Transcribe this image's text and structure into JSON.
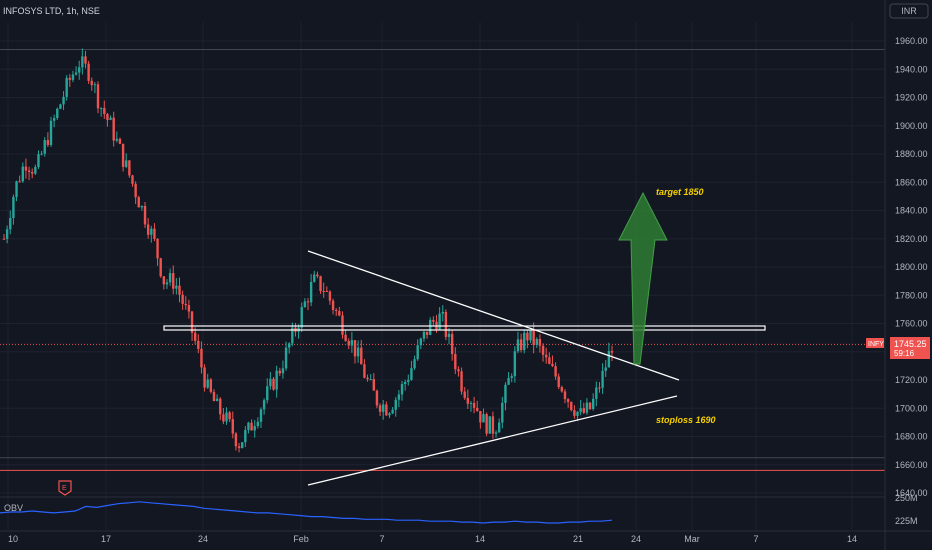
{
  "header": {
    "title": "INFOSYS LTD, 1h, NSE",
    "currency": "INR"
  },
  "indicator": {
    "name": "OBV",
    "ticks": [
      "250M",
      "225M"
    ]
  },
  "price_badge": {
    "symbol": "INFY",
    "price": "1745.25",
    "countdown": "59:16"
  },
  "colors": {
    "up": "#26a69a",
    "down": "#ef5350",
    "background": "#131722",
    "grid": "#1e2230",
    "obv": "#2962ff",
    "arrow": "#2e7d32",
    "annotation": "#f5d000"
  },
  "chart_data": {
    "type": "candlestick",
    "title": "INFOSYS LTD, 1h, NSE",
    "y_ticks": [
      1960,
      1940,
      1920,
      1900,
      1880,
      1860,
      1840,
      1820,
      1800,
      1780,
      1760,
      1740,
      1720,
      1700,
      1680,
      1660,
      1640
    ],
    "ylim": [
      1632,
      1972
    ],
    "x_ticks": [
      "10",
      "17",
      "24",
      "Feb",
      "7",
      "14",
      "21",
      "24",
      "Mar",
      "7",
      "14"
    ],
    "last_price": 1745.25,
    "resistance_level": 1755,
    "support_level": 1656,
    "upper_trendline": {
      "start": [
        "Jan 31",
        1810
      ],
      "end": [
        "Feb 25",
        1722
      ]
    },
    "lower_trendline": {
      "start": [
        "Jan 31",
        1652
      ],
      "end": [
        "Feb 25",
        1708
      ]
    },
    "annotations": [
      "target 1850",
      "stoploss 1690"
    ],
    "target": 1850,
    "stoploss": 1690,
    "candle_anchors": [
      [
        1820
      ],
      [
        1855
      ],
      [
        1875
      ],
      [
        1868
      ],
      [
        1890
      ],
      [
        1910
      ],
      [
        1930
      ],
      [
        1945
      ],
      [
        1938
      ],
      [
        1915
      ],
      [
        1900
      ],
      [
        1880
      ],
      [
        1860
      ],
      [
        1840
      ],
      [
        1820
      ],
      [
        1790
      ],
      [
        1790
      ],
      [
        1770
      ],
      [
        1745
      ],
      [
        1715
      ],
      [
        1700
      ],
      [
        1690
      ],
      [
        1675
      ],
      [
        1685
      ],
      [
        1700
      ],
      [
        1715
      ],
      [
        1730
      ],
      [
        1750
      ],
      [
        1770
      ],
      [
        1790
      ],
      [
        1785
      ],
      [
        1770
      ],
      [
        1755
      ],
      [
        1740
      ],
      [
        1720
      ],
      [
        1705
      ],
      [
        1700
      ],
      [
        1710
      ],
      [
        1725
      ],
      [
        1745
      ],
      [
        1760
      ],
      [
        1765
      ],
      [
        1740
      ],
      [
        1715
      ],
      [
        1705
      ],
      [
        1690
      ],
      [
        1685
      ],
      [
        1710
      ],
      [
        1740
      ],
      [
        1752
      ],
      [
        1745
      ],
      [
        1730
      ],
      [
        1720
      ],
      [
        1705
      ],
      [
        1695
      ],
      [
        1700
      ],
      [
        1720
      ],
      [
        1745
      ]
    ]
  },
  "obv_data": [
    236,
    237,
    237,
    238,
    237,
    236,
    237,
    238,
    243,
    242,
    244,
    246,
    247,
    248,
    247,
    246,
    245,
    244,
    243,
    241,
    240,
    239,
    238,
    237,
    236,
    236,
    235,
    234,
    233,
    232,
    232,
    231,
    230,
    230,
    229,
    229,
    229,
    228,
    228,
    228,
    227,
    227,
    227,
    226,
    226,
    225,
    226,
    226,
    227,
    226,
    226,
    225,
    225,
    226,
    226,
    227,
    227,
    228
  ]
}
